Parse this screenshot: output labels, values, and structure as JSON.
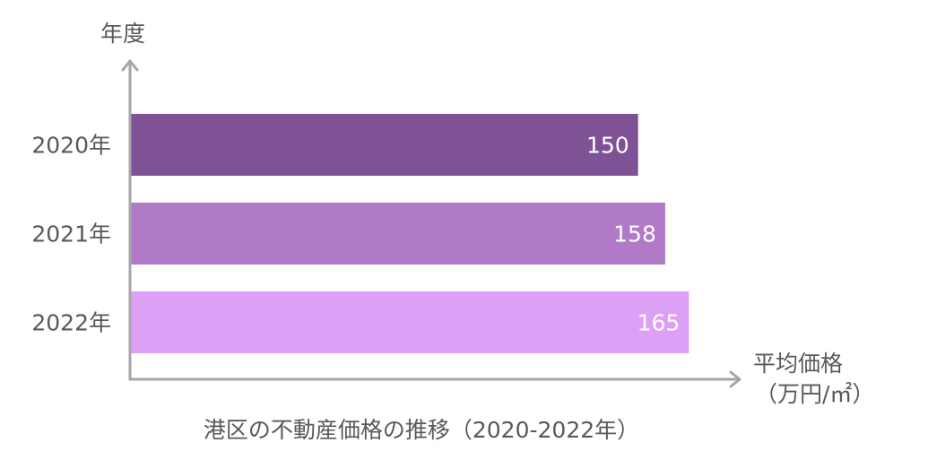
{
  "chart_data": {
    "type": "bar",
    "orientation": "horizontal",
    "title": "港区の不動産価格の推移（2020-2022年）",
    "categories": [
      "2020年",
      "2021年",
      "2022年"
    ],
    "values": [
      150,
      158,
      165
    ],
    "value_labels": [
      "150",
      "158",
      "165"
    ],
    "colors": [
      "#7f5295",
      "#b07ac9",
      "#dca0f7"
    ],
    "y_axis_title": "年度",
    "x_axis_title_line1": "平均価格",
    "x_axis_title_line2": "（万円/㎡）",
    "xlim": [
      0,
      180
    ],
    "grid": false,
    "legend": "none"
  }
}
